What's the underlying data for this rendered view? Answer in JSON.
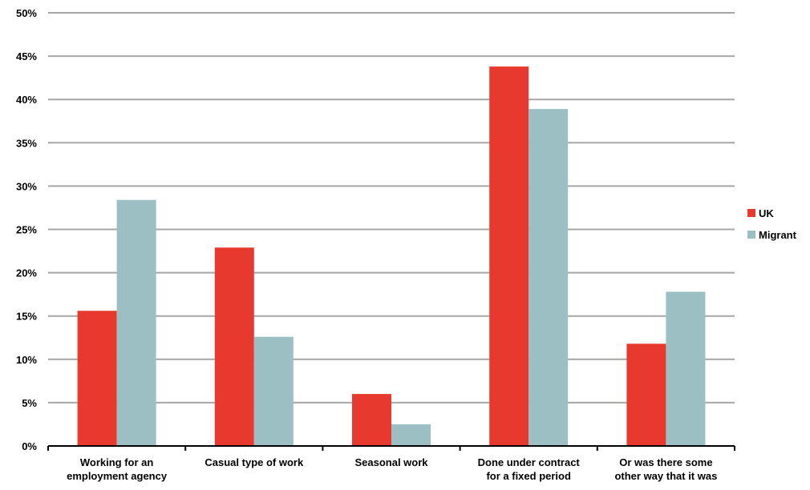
{
  "chart_data": {
    "type": "bar",
    "categories": [
      [
        "Working for an",
        "employment agency"
      ],
      [
        "Casual type of work"
      ],
      [
        "Seasonal work"
      ],
      [
        "Done under contract",
        "for a fixed period"
      ],
      [
        "Or was there some",
        "other way that it was"
      ]
    ],
    "series": [
      {
        "name": "UK",
        "color": "#e8392f",
        "values": [
          15.6,
          22.9,
          6.0,
          43.8,
          11.8
        ]
      },
      {
        "name": "Migrant",
        "color": "#9bbfc2",
        "values": [
          28.4,
          12.6,
          2.5,
          38.9,
          17.8
        ]
      }
    ],
    "ylim": [
      0,
      50
    ],
    "yticks": [
      0,
      5,
      10,
      15,
      20,
      25,
      30,
      35,
      40,
      45,
      50
    ],
    "ytick_labels": [
      "0%",
      "5%",
      "10%",
      "15%",
      "20%",
      "25%",
      "30%",
      "35%",
      "40%",
      "45%",
      "50%"
    ],
    "grid": true,
    "grid_color": "#a6a6a6",
    "legend_position": "right",
    "title": "",
    "xlabel": "",
    "ylabel": ""
  }
}
